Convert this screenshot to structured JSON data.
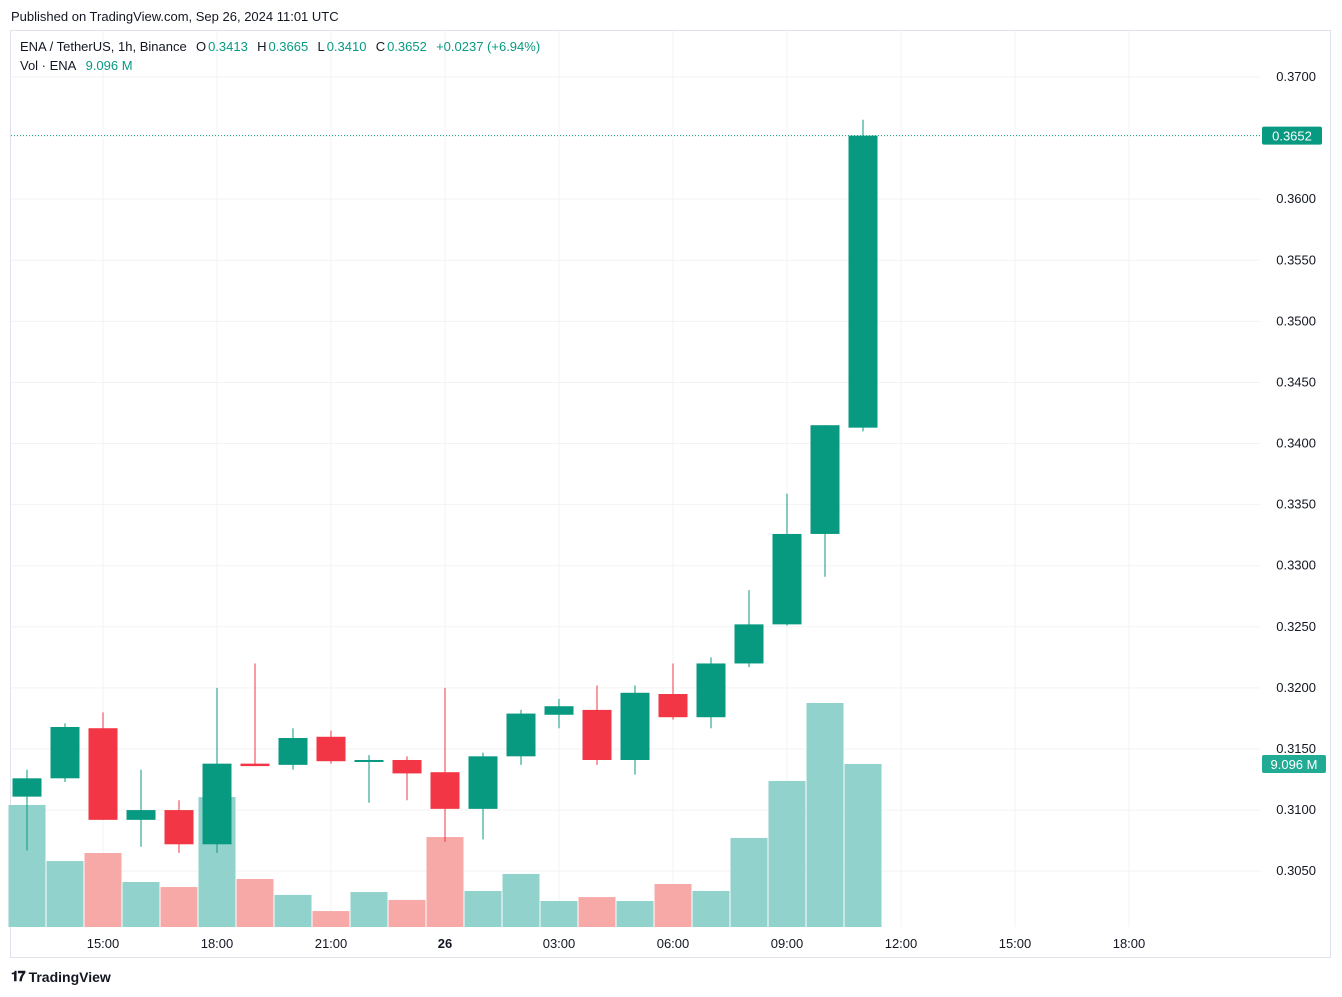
{
  "published": "Published on TradingView.com, Sep 26, 2024 11:01 UTC",
  "legend": {
    "symbol": "ENA / TetherUS, 1h, Binance",
    "o_label": "O",
    "o": "0.3413",
    "h_label": "H",
    "h": "0.3665",
    "l_label": "L",
    "l": "0.3410",
    "c_label": "C",
    "c": "0.3652",
    "change": "+0.0237 (+6.94%)",
    "vol_label": "Vol · ENA",
    "vol": "9.096 M"
  },
  "footer": {
    "logo": "TV",
    "brand": "TradingView"
  },
  "colors": {
    "up": "#089981",
    "down": "#f23645",
    "up_vol": "#92d2cc",
    "down_vol": "#f7a9a7",
    "grid": "#f3f3f5",
    "text": "#131722"
  },
  "chart_data": {
    "type": "candlestick",
    "title": "ENA / TetherUS, 1h, Binance",
    "x": [
      "13:00",
      "14:00",
      "15:00",
      "16:00",
      "17:00",
      "18:00",
      "19:00",
      "20:00",
      "21:00",
      "22:00",
      "23:00",
      "00:00",
      "01:00",
      "02:00",
      "03:00",
      "04:00",
      "05:00",
      "06:00",
      "07:00",
      "08:00",
      "09:00",
      "10:00",
      "11:00"
    ],
    "open": [
      0.3111,
      0.3126,
      0.3167,
      0.3092,
      0.31,
      0.3072,
      0.3138,
      0.3137,
      0.316,
      0.314,
      0.3141,
      0.3131,
      0.3101,
      0.3144,
      0.3178,
      0.3182,
      0.3141,
      0.3195,
      0.3176,
      0.322,
      0.3252,
      0.3326,
      0.3413
    ],
    "high": [
      0.3133,
      0.3171,
      0.318,
      0.3133,
      0.3108,
      0.32,
      0.322,
      0.3167,
      0.3165,
      0.3145,
      0.3144,
      0.32,
      0.3147,
      0.3182,
      0.3191,
      0.3202,
      0.3202,
      0.322,
      0.3225,
      0.328,
      0.3359,
      0.3415,
      0.3665
    ],
    "low": [
      0.3067,
      0.3123,
      0.3092,
      0.307,
      0.3065,
      0.3065,
      0.3136,
      0.3133,
      0.3138,
      0.3106,
      0.3108,
      0.3074,
      0.3076,
      0.3137,
      0.3167,
      0.3137,
      0.3129,
      0.3174,
      0.3167,
      0.3217,
      0.3251,
      0.3291,
      0.341
    ],
    "close": [
      0.3126,
      0.3168,
      0.3092,
      0.31,
      0.3072,
      0.3138,
      0.3136,
      0.3159,
      0.314,
      0.3141,
      0.313,
      0.3101,
      0.3144,
      0.3179,
      0.3185,
      0.3141,
      0.3196,
      0.3176,
      0.322,
      0.3252,
      0.3326,
      0.3415,
      0.3652
    ],
    "volume_millions": [
      6.81,
      3.68,
      4.13,
      2.51,
      2.23,
      7.25,
      2.68,
      1.79,
      0.89,
      1.95,
      1.51,
      5.02,
      2.01,
      2.96,
      1.45,
      1.67,
      1.45,
      2.4,
      2.01,
      4.97,
      8.15,
      12.5,
      9.096
    ],
    "y_ticks": [
      "0.3700",
      "0.3600",
      "0.3550",
      "0.3500",
      "0.3450",
      "0.3400",
      "0.3350",
      "0.3300",
      "0.3250",
      "0.3200",
      "0.3150",
      "0.3100",
      "0.3050"
    ],
    "x_ticks": [
      {
        "label": "15:00",
        "hour_index": 2,
        "bold": false
      },
      {
        "label": "18:00",
        "hour_index": 5,
        "bold": false
      },
      {
        "label": "21:00",
        "hour_index": 8,
        "bold": false
      },
      {
        "label": "26",
        "hour_index": 11,
        "bold": true
      },
      {
        "label": "03:00",
        "hour_index": 14,
        "bold": false
      },
      {
        "label": "06:00",
        "hour_index": 17,
        "bold": false
      },
      {
        "label": "09:00",
        "hour_index": 20,
        "bold": false
      },
      {
        "label": "12:00",
        "hour_index": 23,
        "bold": false
      },
      {
        "label": "15:00",
        "hour_index": 26,
        "bold": false
      },
      {
        "label": "18:00",
        "hour_index": 29,
        "bold": false
      }
    ],
    "last_price_label": "0.3652",
    "last_volume_label": "9.096 M",
    "ylim": [
      0.3004,
      0.3738
    ],
    "grid": true
  }
}
